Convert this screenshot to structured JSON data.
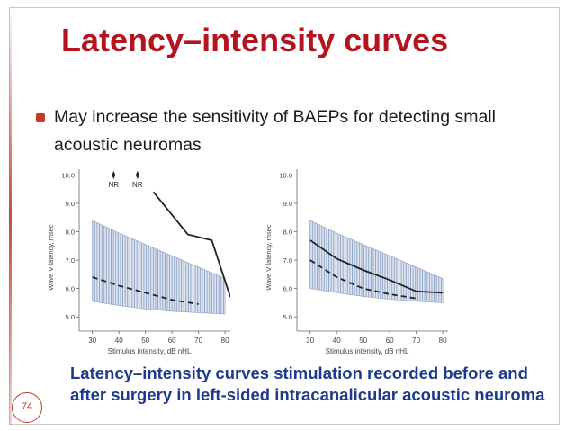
{
  "title": "Latency–intensity curves",
  "bullet": "May increase the sensitivity of BAEPs for detecting small acoustic neuromas",
  "caption": "Latency–intensity curves stimulation recorded before and after surgery in left-sided intracanalicular acoustic neuroma",
  "page_number": "74",
  "colors": {
    "title": "#b3141e",
    "caption": "#1f3a8c",
    "accent": "#c0392b",
    "band": "#8ea2c6",
    "line": "#222222"
  },
  "chart_data": [
    {
      "type": "line",
      "title": "",
      "xlabel": "Stimulus intensity, dB nHL",
      "ylabel": "Wave V latency, msec",
      "xlim": [
        25,
        82
      ],
      "ylim": [
        4.5,
        10.2
      ],
      "xticks": [
        "30",
        "40",
        "50",
        "60",
        "70",
        "80"
      ],
      "yticks": [
        "5.0",
        "6.0",
        "7.0",
        "8.0",
        "9.0",
        "10.0"
      ],
      "annotations": [
        {
          "text": "NR",
          "x": 38
        },
        {
          "text": "NR",
          "x": 47
        }
      ],
      "normal_band": {
        "x": [
          30,
          40,
          50,
          60,
          70,
          80
        ],
        "upper": [
          8.4,
          7.95,
          7.55,
          7.15,
          6.75,
          6.35
        ],
        "lower": [
          5.55,
          5.4,
          5.28,
          5.2,
          5.15,
          5.1
        ]
      },
      "series": [
        {
          "name": "normal mean",
          "style": "dashed",
          "x": [
            30,
            40,
            50,
            60,
            70
          ],
          "y": [
            6.4,
            6.1,
            5.85,
            5.6,
            5.45
          ]
        },
        {
          "name": "patient",
          "style": "solid",
          "x": [
            53,
            66,
            75,
            82
          ],
          "y": [
            9.4,
            7.9,
            7.7,
            5.7
          ]
        }
      ]
    },
    {
      "type": "line",
      "title": "",
      "xlabel": "Stimulus intensity, dB nHL",
      "ylabel": "Wave V latency, msec",
      "xlim": [
        25,
        82
      ],
      "ylim": [
        4.5,
        10.2
      ],
      "xticks": [
        "30",
        "40",
        "50",
        "60",
        "70",
        "80"
      ],
      "yticks": [
        "5.0",
        "6.0",
        "7.0",
        "8.0",
        "9.0",
        "10.0"
      ],
      "annotations": [],
      "normal_band": {
        "x": [
          30,
          40,
          50,
          60,
          70,
          80
        ],
        "upper": [
          8.4,
          7.95,
          7.55,
          7.15,
          6.75,
          6.35
        ],
        "lower": [
          6.0,
          5.85,
          5.72,
          5.62,
          5.55,
          5.5
        ]
      },
      "series": [
        {
          "name": "normal mean",
          "style": "dashed",
          "x": [
            30,
            40,
            50,
            60,
            70
          ],
          "y": [
            7.0,
            6.4,
            6.0,
            5.8,
            5.65
          ]
        },
        {
          "name": "patient",
          "style": "solid",
          "x": [
            30,
            40,
            50,
            60,
            70,
            80
          ],
          "y": [
            7.7,
            7.05,
            6.65,
            6.3,
            5.9,
            5.85
          ]
        }
      ]
    }
  ]
}
